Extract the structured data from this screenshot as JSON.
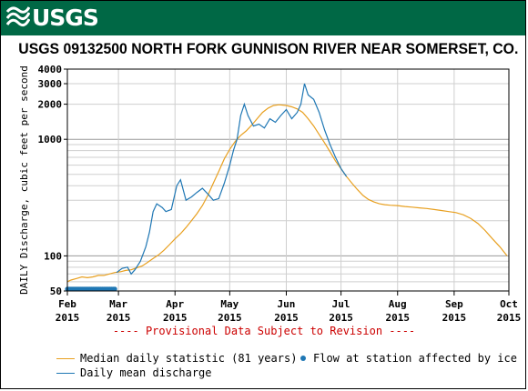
{
  "header": {
    "logo_text": "USGS"
  },
  "chart_data": {
    "type": "line",
    "title": "USGS 09132500 NORTH FORK GUNNISON RIVER NEAR SOMERSET, CO.",
    "ylabel": "DAILY Discharge, cubic feet per second",
    "xlabel": "",
    "y_scale": "log",
    "ylim": [
      50,
      4000
    ],
    "y_ticks": [
      50,
      100,
      1000,
      2000,
      3000,
      4000
    ],
    "y_tick_labels": [
      "50",
      "100",
      "1000",
      "2000",
      "3000",
      "4000"
    ],
    "x_range": [
      "2015-02-01",
      "2015-10-01"
    ],
    "x_ticks": [
      {
        "date": "2015-02-01",
        "month": "Feb",
        "year": "2015"
      },
      {
        "date": "2015-03-01",
        "month": "Mar",
        "year": "2015"
      },
      {
        "date": "2015-04-01",
        "month": "Apr",
        "year": "2015"
      },
      {
        "date": "2015-05-01",
        "month": "May",
        "year": "2015"
      },
      {
        "date": "2015-06-01",
        "month": "Jun",
        "year": "2015"
      },
      {
        "date": "2015-07-01",
        "month": "Jul",
        "year": "2015"
      },
      {
        "date": "2015-08-01",
        "month": "Aug",
        "year": "2015"
      },
      {
        "date": "2015-09-01",
        "month": "Sep",
        "year": "2015"
      },
      {
        "date": "2015-10-01",
        "month": "Oct",
        "year": "2015"
      }
    ],
    "grid": true,
    "provisional_note": "---- Provisional Data Subject to Revision ----",
    "series": [
      {
        "name": "Median daily statistic (81 years)",
        "color": "#e8a020",
        "points": [
          [
            "2015-02-01",
            60
          ],
          [
            "2015-02-03",
            62
          ],
          [
            "2015-02-06",
            64
          ],
          [
            "2015-02-09",
            66
          ],
          [
            "2015-02-12",
            65
          ],
          [
            "2015-02-15",
            66
          ],
          [
            "2015-02-18",
            68
          ],
          [
            "2015-02-21",
            68
          ],
          [
            "2015-02-24",
            70
          ],
          [
            "2015-02-27",
            72
          ],
          [
            "2015-03-02",
            73
          ],
          [
            "2015-03-05",
            75
          ],
          [
            "2015-03-08",
            76
          ],
          [
            "2015-03-11",
            79
          ],
          [
            "2015-03-14",
            82
          ],
          [
            "2015-03-17",
            88
          ],
          [
            "2015-03-20",
            95
          ],
          [
            "2015-03-23",
            102
          ],
          [
            "2015-03-26",
            112
          ],
          [
            "2015-03-29",
            125
          ],
          [
            "2015-04-01",
            140
          ],
          [
            "2015-04-04",
            155
          ],
          [
            "2015-04-07",
            175
          ],
          [
            "2015-04-10",
            200
          ],
          [
            "2015-04-13",
            230
          ],
          [
            "2015-04-16",
            270
          ],
          [
            "2015-04-19",
            330
          ],
          [
            "2015-04-22",
            420
          ],
          [
            "2015-04-25",
            530
          ],
          [
            "2015-04-28",
            680
          ],
          [
            "2015-05-01",
            820
          ],
          [
            "2015-05-04",
            960
          ],
          [
            "2015-05-07",
            1080
          ],
          [
            "2015-05-10",
            1180
          ],
          [
            "2015-05-13",
            1320
          ],
          [
            "2015-05-16",
            1500
          ],
          [
            "2015-05-19",
            1700
          ],
          [
            "2015-05-22",
            1850
          ],
          [
            "2015-05-25",
            1950
          ],
          [
            "2015-05-28",
            1980
          ],
          [
            "2015-06-01",
            1950
          ],
          [
            "2015-06-04",
            1900
          ],
          [
            "2015-06-07",
            1820
          ],
          [
            "2015-06-10",
            1700
          ],
          [
            "2015-06-13",
            1500
          ],
          [
            "2015-06-16",
            1300
          ],
          [
            "2015-06-19",
            1100
          ],
          [
            "2015-06-22",
            930
          ],
          [
            "2015-06-25",
            780
          ],
          [
            "2015-06-28",
            650
          ],
          [
            "2015-07-01",
            560
          ],
          [
            "2015-07-04",
            480
          ],
          [
            "2015-07-07",
            420
          ],
          [
            "2015-07-10",
            370
          ],
          [
            "2015-07-13",
            330
          ],
          [
            "2015-07-16",
            305
          ],
          [
            "2015-07-19",
            290
          ],
          [
            "2015-07-22",
            280
          ],
          [
            "2015-07-25",
            275
          ],
          [
            "2015-07-28",
            272
          ],
          [
            "2015-08-01",
            270
          ],
          [
            "2015-08-05",
            265
          ],
          [
            "2015-08-09",
            262
          ],
          [
            "2015-08-13",
            258
          ],
          [
            "2015-08-17",
            255
          ],
          [
            "2015-08-21",
            250
          ],
          [
            "2015-08-25",
            245
          ],
          [
            "2015-08-29",
            240
          ],
          [
            "2015-09-02",
            235
          ],
          [
            "2015-09-06",
            225
          ],
          [
            "2015-09-10",
            210
          ],
          [
            "2015-09-14",
            190
          ],
          [
            "2015-09-18",
            165
          ],
          [
            "2015-09-22",
            140
          ],
          [
            "2015-09-26",
            120
          ],
          [
            "2015-09-30",
            100
          ]
        ]
      },
      {
        "name": "Daily mean discharge",
        "color": "#1f77b4",
        "points": [
          [
            "2015-02-28",
            72
          ],
          [
            "2015-03-03",
            78
          ],
          [
            "2015-03-06",
            80
          ],
          [
            "2015-03-08",
            70
          ],
          [
            "2015-03-10",
            76
          ],
          [
            "2015-03-13",
            90
          ],
          [
            "2015-03-16",
            120
          ],
          [
            "2015-03-18",
            160
          ],
          [
            "2015-03-20",
            240
          ],
          [
            "2015-03-22",
            280
          ],
          [
            "2015-03-25",
            260
          ],
          [
            "2015-03-27",
            240
          ],
          [
            "2015-03-30",
            250
          ],
          [
            "2015-04-02",
            400
          ],
          [
            "2015-04-04",
            450
          ],
          [
            "2015-04-07",
            300
          ],
          [
            "2015-04-10",
            320
          ],
          [
            "2015-04-13",
            350
          ],
          [
            "2015-04-16",
            380
          ],
          [
            "2015-04-19",
            340
          ],
          [
            "2015-04-22",
            300
          ],
          [
            "2015-04-25",
            310
          ],
          [
            "2015-04-28",
            420
          ],
          [
            "2015-05-01",
            600
          ],
          [
            "2015-05-03",
            800
          ],
          [
            "2015-05-05",
            1000
          ],
          [
            "2015-05-07",
            1600
          ],
          [
            "2015-05-09",
            2000
          ],
          [
            "2015-05-11",
            1600
          ],
          [
            "2015-05-14",
            1300
          ],
          [
            "2015-05-17",
            1350
          ],
          [
            "2015-05-20",
            1250
          ],
          [
            "2015-05-23",
            1500
          ],
          [
            "2015-05-26",
            1400
          ],
          [
            "2015-05-29",
            1600
          ],
          [
            "2015-06-01",
            1800
          ],
          [
            "2015-06-04",
            1500
          ],
          [
            "2015-06-07",
            1700
          ],
          [
            "2015-06-09",
            2000
          ],
          [
            "2015-06-11",
            3000
          ],
          [
            "2015-06-13",
            2400
          ],
          [
            "2015-06-16",
            2200
          ],
          [
            "2015-06-19",
            1700
          ],
          [
            "2015-06-22",
            1200
          ],
          [
            "2015-06-25",
            900
          ],
          [
            "2015-06-28",
            700
          ],
          [
            "2015-07-01",
            560
          ],
          [
            "2015-07-04",
            480
          ]
        ]
      }
    ],
    "ice_affected": {
      "name": "Flow at station affected by ice",
      "color": "#1f77b4",
      "value": 52,
      "date_range": [
        "2015-02-01",
        "2015-02-27"
      ]
    }
  }
}
